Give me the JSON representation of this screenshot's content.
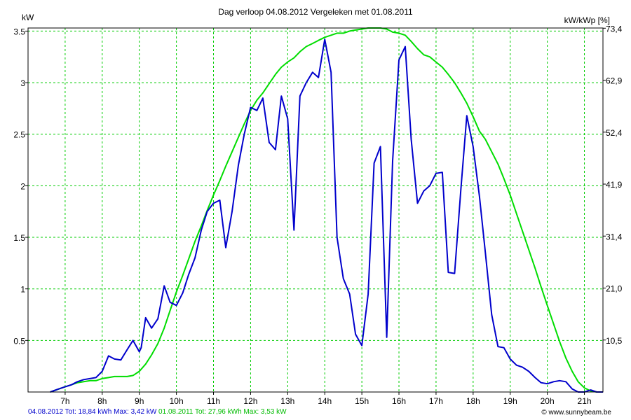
{
  "chart_data": {
    "type": "line",
    "title": "Dag  verloop 04.08.2012   Vergeleken met 01.08.2011",
    "ylabel": "kW",
    "y2label": "kW/kWp [%]",
    "xlim": [
      6.0,
      21.5
    ],
    "ylim": [
      0,
      3.53
    ],
    "x_ticks": [
      7,
      8,
      9,
      10,
      11,
      12,
      13,
      14,
      15,
      16,
      17,
      18,
      19,
      20,
      21
    ],
    "x_tick_labels": [
      "7h",
      "8h",
      "9h",
      "10h",
      "11h",
      "12h",
      "13h",
      "14h",
      "15h",
      "16h",
      "17h",
      "18h",
      "19h",
      "20h",
      "21h"
    ],
    "y_ticks": [
      0.5,
      1,
      1.5,
      2,
      2.5,
      3,
      3.5
    ],
    "y_tick_labels": [
      "0.5",
      "1",
      "1.5",
      "2",
      "2.5",
      "3",
      "3.5"
    ],
    "y2_ticks": [
      0.504,
      1.008,
      1.512,
      2.016,
      2.52,
      3.024,
      3.528
    ],
    "y2_tick_labels": [
      "10,5",
      "21,0",
      "31,4",
      "41,9",
      "52,4",
      "62,9",
      "73,4"
    ],
    "grid": true,
    "series": [
      {
        "name": "04.08.2012",
        "color": "#0000cc",
        "x": [
          6.6,
          6.83,
          7.0,
          7.17,
          7.33,
          7.5,
          7.67,
          7.83,
          8.0,
          8.17,
          8.33,
          8.5,
          8.67,
          8.83,
          9.0,
          9.05,
          9.17,
          9.33,
          9.5,
          9.67,
          9.83,
          10.0,
          10.17,
          10.33,
          10.5,
          10.67,
          10.83,
          11.0,
          11.17,
          11.33,
          11.5,
          11.67,
          11.83,
          12.0,
          12.17,
          12.33,
          12.5,
          12.67,
          12.83,
          13.0,
          13.17,
          13.33,
          13.5,
          13.67,
          13.83,
          14.0,
          14.17,
          14.33,
          14.5,
          14.67,
          14.83,
          15.0,
          15.17,
          15.33,
          15.5,
          15.67,
          15.83,
          16.0,
          16.17,
          16.33,
          16.5,
          16.67,
          16.83,
          17.0,
          17.17,
          17.33,
          17.5,
          17.67,
          17.83,
          18.0,
          18.17,
          18.33,
          18.5,
          18.67,
          18.83,
          19.0,
          19.17,
          19.33,
          19.5,
          19.67,
          19.83,
          20.0,
          20.17,
          20.33,
          20.5,
          20.67,
          20.83,
          21.0,
          21.17,
          21.33,
          21.5
        ],
        "values": [
          0.0,
          0.03,
          0.05,
          0.07,
          0.1,
          0.12,
          0.13,
          0.14,
          0.2,
          0.35,
          0.32,
          0.31,
          0.41,
          0.5,
          0.39,
          0.43,
          0.72,
          0.62,
          0.71,
          1.03,
          0.87,
          0.84,
          0.96,
          1.14,
          1.3,
          1.57,
          1.75,
          1.83,
          1.86,
          1.4,
          1.75,
          2.2,
          2.5,
          2.76,
          2.73,
          2.85,
          2.42,
          2.35,
          2.87,
          2.65,
          1.57,
          2.87,
          3.0,
          3.1,
          3.05,
          3.42,
          3.1,
          1.5,
          1.1,
          0.95,
          0.56,
          0.45,
          0.95,
          2.22,
          2.38,
          0.53,
          2.24,
          3.22,
          3.35,
          2.45,
          1.83,
          1.95,
          2.0,
          2.12,
          2.13,
          1.16,
          1.15,
          1.97,
          2.68,
          2.38,
          1.9,
          1.35,
          0.75,
          0.44,
          0.43,
          0.32,
          0.26,
          0.24,
          0.2,
          0.14,
          0.09,
          0.08,
          0.1,
          0.11,
          0.1,
          0.03,
          0.0,
          0.0,
          0.02,
          0.0,
          0.0
        ]
      },
      {
        "name": "01.08.2011",
        "color": "#00dd00",
        "x": [
          6.6,
          7.0,
          7.17,
          7.33,
          7.5,
          7.67,
          7.83,
          8.0,
          8.17,
          8.33,
          8.5,
          8.67,
          8.83,
          9.0,
          9.17,
          9.33,
          9.5,
          9.67,
          9.83,
          10.0,
          10.17,
          10.33,
          10.5,
          10.67,
          10.83,
          11.0,
          11.17,
          11.33,
          11.5,
          11.67,
          11.83,
          12.0,
          12.17,
          12.33,
          12.5,
          12.67,
          12.83,
          13.0,
          13.17,
          13.33,
          13.5,
          13.67,
          13.83,
          14.0,
          14.17,
          14.33,
          14.5,
          14.67,
          14.83,
          15.0,
          15.17,
          15.33,
          15.5,
          15.67,
          15.83,
          16.0,
          16.17,
          16.33,
          16.5,
          16.67,
          16.83,
          17.0,
          17.17,
          17.33,
          17.5,
          17.67,
          17.83,
          18.0,
          18.17,
          18.33,
          18.5,
          18.67,
          18.83,
          19.0,
          19.17,
          19.33,
          19.5,
          19.67,
          19.83,
          20.0,
          20.17,
          20.33,
          20.5,
          20.67,
          20.83,
          21.0,
          21.17,
          21.33,
          21.5
        ],
        "values": [
          0.0,
          0.05,
          0.07,
          0.09,
          0.1,
          0.11,
          0.11,
          0.13,
          0.14,
          0.15,
          0.15,
          0.15,
          0.16,
          0.2,
          0.27,
          0.36,
          0.47,
          0.62,
          0.79,
          0.97,
          1.13,
          1.29,
          1.46,
          1.61,
          1.76,
          1.91,
          2.05,
          2.19,
          2.33,
          2.47,
          2.6,
          2.73,
          2.83,
          2.9,
          2.99,
          3.08,
          3.15,
          3.2,
          3.24,
          3.3,
          3.35,
          3.38,
          3.41,
          3.44,
          3.46,
          3.48,
          3.48,
          3.5,
          3.51,
          3.52,
          3.53,
          3.53,
          3.53,
          3.52,
          3.49,
          3.48,
          3.46,
          3.4,
          3.33,
          3.27,
          3.25,
          3.2,
          3.15,
          3.08,
          3.0,
          2.9,
          2.8,
          2.67,
          2.53,
          2.45,
          2.33,
          2.21,
          2.07,
          1.91,
          1.73,
          1.56,
          1.38,
          1.2,
          1.02,
          0.84,
          0.66,
          0.49,
          0.33,
          0.2,
          0.1,
          0.04,
          0.01,
          0.0,
          0.0
        ]
      }
    ]
  },
  "footer": {
    "series0": "04.08.2012 Tot: 18,84 kWh Max: 3,42 kW",
    "series1": "01.08.2011 Tot: 27,96 kWh Max: 3,53 kW"
  },
  "copyright": "© www.sunnybeam.be"
}
